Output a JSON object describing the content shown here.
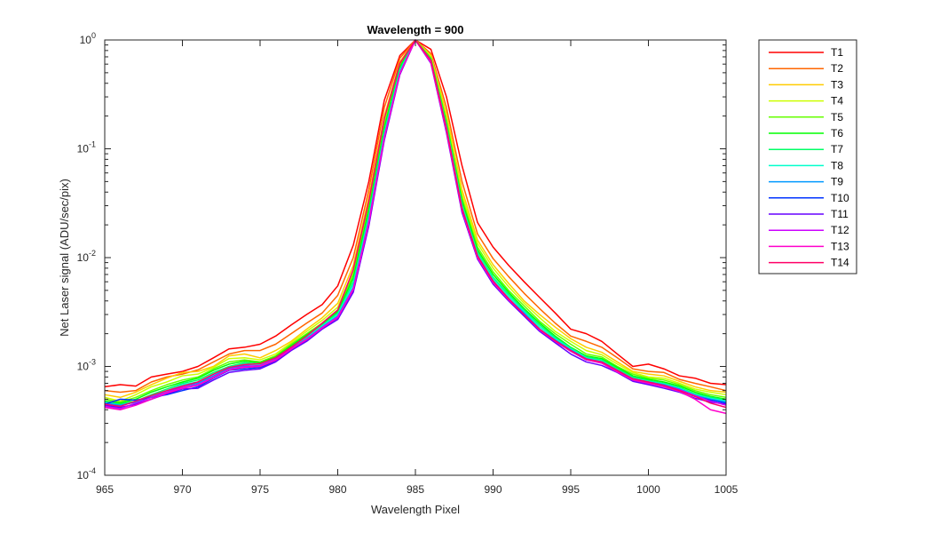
{
  "chart_data": {
    "type": "line",
    "title": "Wavelength = 900",
    "xlabel": "Wavelength Pixel",
    "ylabel": "Net Laser signal  (ADU/sec/pix)",
    "xlim": [
      965,
      1005
    ],
    "ylim": [
      0.0001,
      1
    ],
    "yscale": "log",
    "xticks": [
      965,
      970,
      975,
      980,
      985,
      990,
      995,
      1000,
      1005
    ],
    "yticks": [
      {
        "value": 0.0001,
        "base": "10",
        "exp": "-4"
      },
      {
        "value": 0.001,
        "base": "10",
        "exp": "-3"
      },
      {
        "value": 0.01,
        "base": "10",
        "exp": "-2"
      },
      {
        "value": 0.1,
        "base": "10",
        "exp": "-1"
      },
      {
        "value": 1,
        "base": "10",
        "exp": "0"
      }
    ],
    "grid": false,
    "legend_position": "outside-right",
    "x": [
      965,
      966,
      967,
      968,
      969,
      970,
      971,
      972,
      973,
      974,
      975,
      976,
      977,
      978,
      979,
      980,
      981,
      982,
      983,
      984,
      985,
      986,
      987,
      988,
      989,
      990,
      991,
      992,
      993,
      994,
      995,
      996,
      997,
      998,
      999,
      1000,
      1001,
      1002,
      1003,
      1004,
      1005
    ],
    "series": [
      {
        "name": "T1",
        "color": "#ff0000",
        "values": [
          0.00065,
          0.00068,
          0.00066,
          0.0008,
          0.00085,
          0.0009,
          0.001,
          0.0012,
          0.00145,
          0.0015,
          0.0016,
          0.0019,
          0.0024,
          0.003,
          0.0037,
          0.0055,
          0.013,
          0.05,
          0.28,
          0.72,
          1.0,
          0.82,
          0.3,
          0.07,
          0.021,
          0.0125,
          0.0085,
          0.006,
          0.0043,
          0.0031,
          0.0022,
          0.002,
          0.0017,
          0.0013,
          0.001,
          0.00105,
          0.00095,
          0.00082,
          0.00078,
          0.0007,
          0.00068
        ]
      },
      {
        "name": "T2",
        "color": "#ff6600",
        "values": [
          0.0006,
          0.00058,
          0.0006,
          0.00072,
          0.0008,
          0.00085,
          0.00093,
          0.0011,
          0.0013,
          0.0014,
          0.0014,
          0.0016,
          0.002,
          0.0025,
          0.0031,
          0.0045,
          0.01,
          0.042,
          0.24,
          0.68,
          1.0,
          0.75,
          0.24,
          0.05,
          0.0165,
          0.0098,
          0.0067,
          0.0047,
          0.0034,
          0.0025,
          0.0019,
          0.0017,
          0.0015,
          0.0012,
          0.00095,
          0.0009,
          0.00088,
          0.00076,
          0.0007,
          0.00065,
          0.0006
        ]
      },
      {
        "name": "T3",
        "color": "#ffcc00",
        "values": [
          0.00055,
          0.00052,
          0.00058,
          0.00068,
          0.00078,
          0.00088,
          0.0009,
          0.001,
          0.00125,
          0.0013,
          0.0012,
          0.0014,
          0.0017,
          0.0022,
          0.0028,
          0.0038,
          0.0085,
          0.036,
          0.2,
          0.63,
          1.0,
          0.72,
          0.21,
          0.042,
          0.0145,
          0.0086,
          0.0058,
          0.004,
          0.003,
          0.0023,
          0.0018,
          0.0015,
          0.00135,
          0.0011,
          0.0009,
          0.00085,
          0.00082,
          0.00073,
          0.00065,
          0.0006,
          0.00058
        ]
      },
      {
        "name": "T4",
        "color": "#ccff00",
        "values": [
          0.00052,
          0.00048,
          0.00055,
          0.00065,
          0.00072,
          0.00082,
          0.00085,
          0.00098,
          0.00118,
          0.0012,
          0.00115,
          0.0013,
          0.00165,
          0.0021,
          0.00265,
          0.0035,
          0.0075,
          0.032,
          0.18,
          0.6,
          1.0,
          0.7,
          0.19,
          0.038,
          0.0135,
          0.008,
          0.0054,
          0.0038,
          0.0028,
          0.0021,
          0.0017,
          0.0014,
          0.00128,
          0.00105,
          0.00088,
          0.0008,
          0.00078,
          0.0007,
          0.00062,
          0.00058,
          0.00055
        ]
      },
      {
        "name": "T5",
        "color": "#66ff00",
        "values": [
          0.0005,
          0.00047,
          0.00052,
          0.0006,
          0.00068,
          0.00075,
          0.0008,
          0.00095,
          0.0011,
          0.00115,
          0.0011,
          0.00125,
          0.0016,
          0.002,
          0.0025,
          0.0033,
          0.007,
          0.029,
          0.165,
          0.58,
          1.0,
          0.68,
          0.18,
          0.035,
          0.0125,
          0.0074,
          0.005,
          0.0036,
          0.0026,
          0.002,
          0.0016,
          0.0013,
          0.00122,
          0.001,
          0.00085,
          0.00078,
          0.00075,
          0.00068,
          0.0006,
          0.00055,
          0.00052
        ]
      },
      {
        "name": "T6",
        "color": "#00ff00",
        "values": [
          0.00048,
          0.00046,
          0.0005,
          0.00058,
          0.00065,
          0.00072,
          0.00078,
          0.00092,
          0.00105,
          0.00112,
          0.00108,
          0.00122,
          0.00155,
          0.00195,
          0.00245,
          0.0032,
          0.0065,
          0.027,
          0.155,
          0.56,
          1.0,
          0.67,
          0.17,
          0.033,
          0.0118,
          0.007,
          0.0048,
          0.0034,
          0.0025,
          0.0019,
          0.0015,
          0.00125,
          0.00118,
          0.00098,
          0.00082,
          0.00076,
          0.00072,
          0.00066,
          0.00058,
          0.00053,
          0.0005
        ]
      },
      {
        "name": "T7",
        "color": "#00ff66",
        "values": [
          0.00047,
          0.00045,
          0.00048,
          0.00055,
          0.00062,
          0.0007,
          0.00075,
          0.00088,
          0.001,
          0.00108,
          0.00105,
          0.0012,
          0.0015,
          0.0019,
          0.0024,
          0.0031,
          0.006,
          0.025,
          0.145,
          0.54,
          1.0,
          0.66,
          0.165,
          0.031,
          0.0112,
          0.0066,
          0.0046,
          0.0033,
          0.0024,
          0.00185,
          0.00148,
          0.00122,
          0.00115,
          0.00095,
          0.0008,
          0.00074,
          0.0007,
          0.00064,
          0.00056,
          0.00052,
          0.00049
        ]
      },
      {
        "name": "T8",
        "color": "#00ffcc",
        "values": [
          0.00047,
          0.00044,
          0.00047,
          0.00053,
          0.0006,
          0.00068,
          0.00072,
          0.00085,
          0.00098,
          0.00105,
          0.00103,
          0.00118,
          0.00148,
          0.00185,
          0.00235,
          0.003,
          0.0057,
          0.0235,
          0.138,
          0.52,
          1.0,
          0.65,
          0.16,
          0.03,
          0.0108,
          0.0064,
          0.0044,
          0.0032,
          0.0023,
          0.0018,
          0.00145,
          0.0012,
          0.00112,
          0.00093,
          0.00078,
          0.00073,
          0.00069,
          0.00063,
          0.00055,
          0.00051,
          0.00048
        ]
      },
      {
        "name": "T9",
        "color": "#0099ff",
        "values": [
          0.00046,
          0.00044,
          0.00047,
          0.00052,
          0.00058,
          0.00066,
          0.0007,
          0.00082,
          0.00096,
          0.00102,
          0.001,
          0.00115,
          0.00145,
          0.0018,
          0.0023,
          0.0029,
          0.0053,
          0.022,
          0.13,
          0.5,
          1.0,
          0.63,
          0.15,
          0.028,
          0.0103,
          0.0061,
          0.0042,
          0.0031,
          0.0022,
          0.00175,
          0.00142,
          0.00118,
          0.0011,
          0.00092,
          0.00077,
          0.00072,
          0.00068,
          0.00062,
          0.00054,
          0.0005,
          0.00047
        ]
      },
      {
        "name": "T10",
        "color": "#0033ff",
        "values": [
          0.00045,
          0.0005,
          0.00049,
          0.00052,
          0.00055,
          0.0006,
          0.00065,
          0.00078,
          0.00092,
          0.00095,
          0.00098,
          0.00112,
          0.00142,
          0.00175,
          0.00225,
          0.0028,
          0.005,
          0.0205,
          0.125,
          0.49,
          1.0,
          0.62,
          0.145,
          0.027,
          0.01,
          0.0059,
          0.0041,
          0.003,
          0.00215,
          0.0017,
          0.00138,
          0.00115,
          0.00108,
          0.0009,
          0.00075,
          0.0007,
          0.00066,
          0.0006,
          0.00053,
          0.00049,
          0.00046
        ]
      },
      {
        "name": "T11",
        "color": "#6600ff",
        "values": [
          0.00044,
          0.00042,
          0.00045,
          0.0005,
          0.00056,
          0.00062,
          0.00063,
          0.00075,
          0.00088,
          0.00092,
          0.00095,
          0.0011,
          0.0014,
          0.0017,
          0.0022,
          0.0027,
          0.0048,
          0.0195,
          0.12,
          0.48,
          1.0,
          0.61,
          0.14,
          0.026,
          0.0097,
          0.0057,
          0.004,
          0.0029,
          0.0021,
          0.00165,
          0.0013,
          0.0011,
          0.00102,
          0.00088,
          0.00073,
          0.00068,
          0.00063,
          0.00058,
          0.00051,
          0.00047,
          0.00045
        ]
      },
      {
        "name": "T12",
        "color": "#cc00ff",
        "values": [
          0.00043,
          0.00041,
          0.00046,
          0.00052,
          0.00058,
          0.00064,
          0.00068,
          0.0008,
          0.00094,
          0.001,
          0.00102,
          0.00116,
          0.00146,
          0.00178,
          0.00228,
          0.00285,
          0.0052,
          0.0215,
          0.128,
          0.495,
          1.0,
          0.625,
          0.148,
          0.0275,
          0.0101,
          0.006,
          0.0042,
          0.003,
          0.00218,
          0.00172,
          0.0014,
          0.00116,
          0.00109,
          0.00091,
          0.00076,
          0.00071,
          0.00067,
          0.00061,
          0.00054,
          0.00048,
          0.00044
        ]
      },
      {
        "name": "T13",
        "color": "#ff00cc",
        "values": [
          0.00042,
          0.0004,
          0.00044,
          0.0005,
          0.00057,
          0.00063,
          0.00067,
          0.00079,
          0.00093,
          0.00098,
          0.001,
          0.00114,
          0.00144,
          0.00176,
          0.00226,
          0.00282,
          0.0051,
          0.021,
          0.127,
          0.492,
          1.0,
          0.62,
          0.146,
          0.0272,
          0.01,
          0.0059,
          0.0041,
          0.003,
          0.00216,
          0.0017,
          0.00138,
          0.00115,
          0.00107,
          0.00089,
          0.00075,
          0.0007,
          0.00065,
          0.00059,
          0.0005,
          0.0004,
          0.00037
        ]
      },
      {
        "name": "T14",
        "color": "#ff0066",
        "values": [
          0.00045,
          0.00043,
          0.00048,
          0.00054,
          0.0006,
          0.00066,
          0.00072,
          0.00085,
          0.00098,
          0.00104,
          0.00106,
          0.0012,
          0.0015,
          0.0019,
          0.0025,
          0.0033,
          0.0078,
          0.033,
          0.19,
          0.61,
          1.0,
          0.65,
          0.155,
          0.0285,
          0.0104,
          0.0061,
          0.0042,
          0.003,
          0.0022,
          0.00173,
          0.0014,
          0.00117,
          0.0011,
          0.00092,
          0.00077,
          0.00072,
          0.00067,
          0.0006,
          0.00053,
          0.00046,
          0.00042
        ]
      }
    ]
  }
}
